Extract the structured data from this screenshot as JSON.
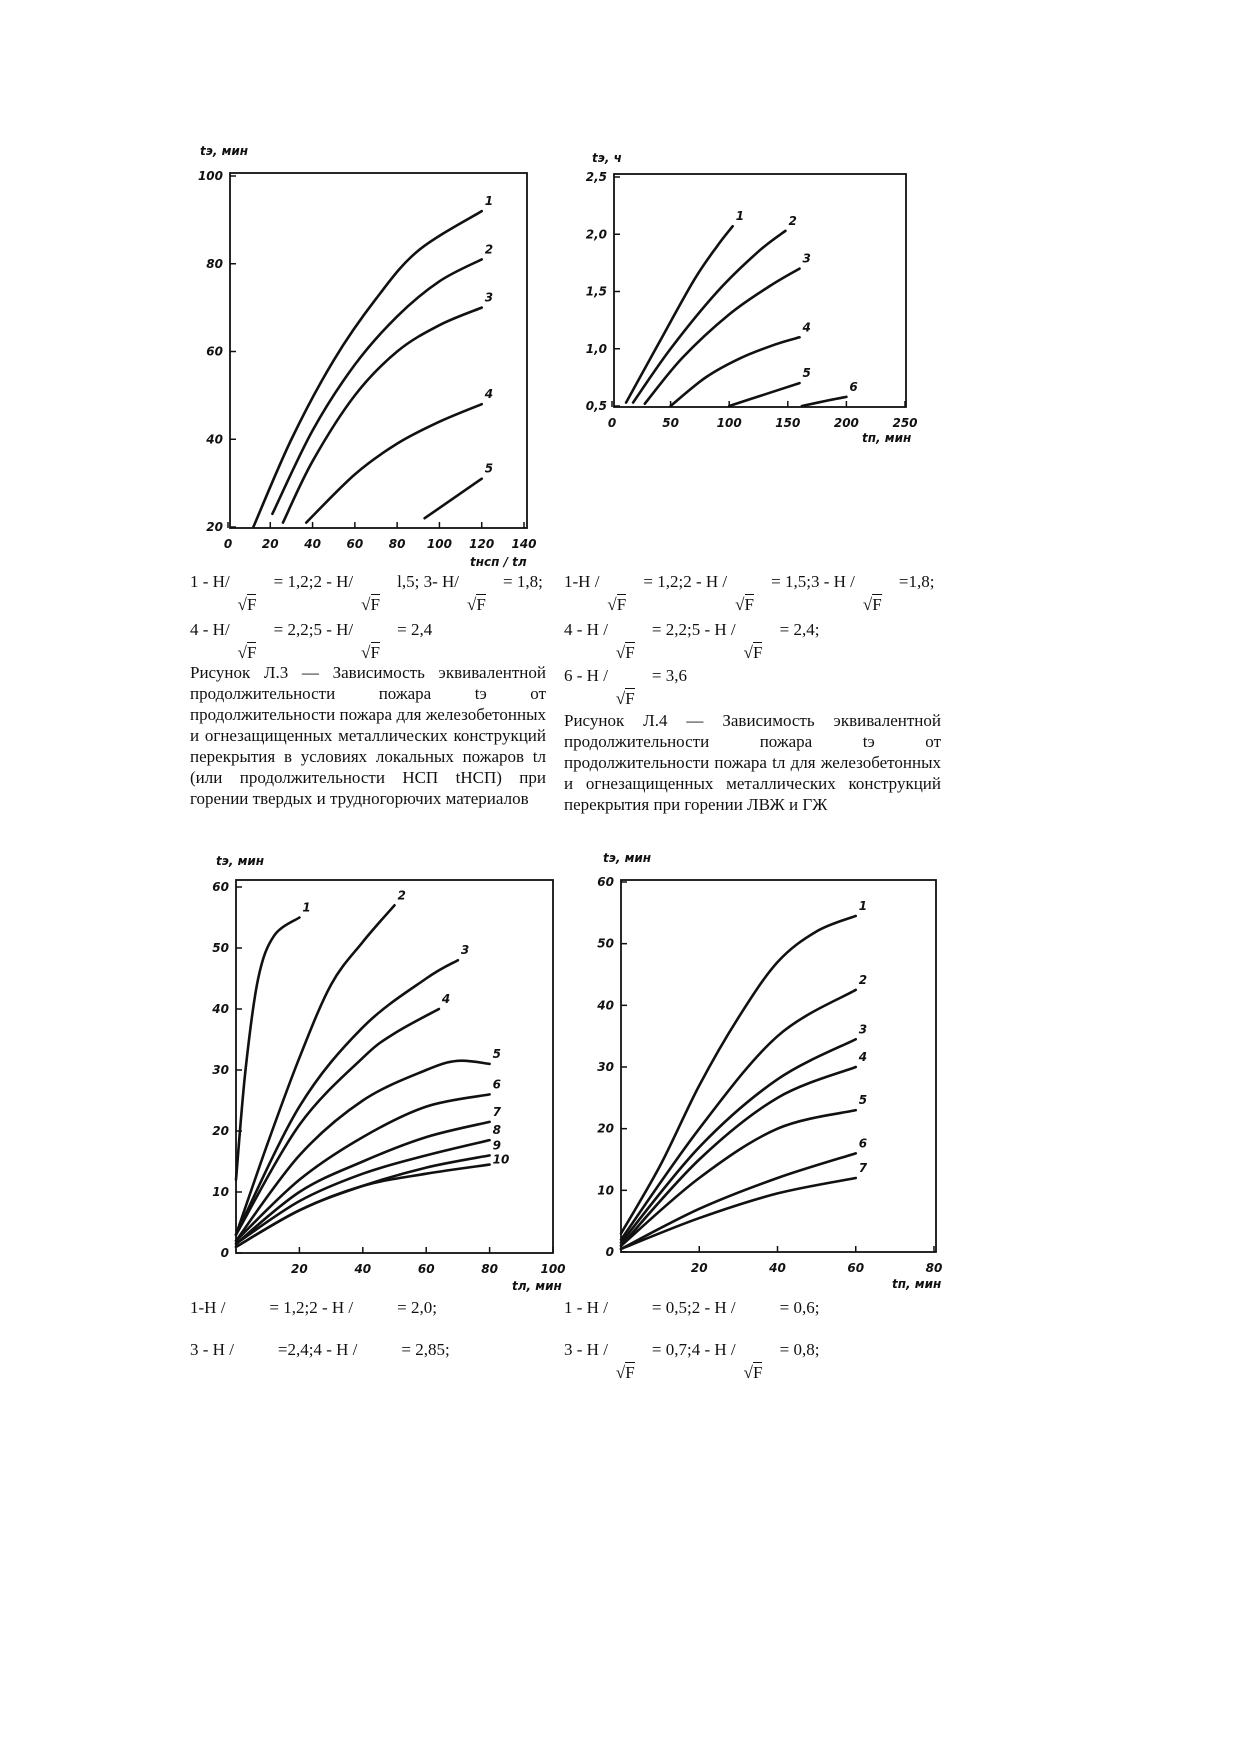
{
  "chart_data": [
    {
      "id": "fig-l3",
      "type": "line",
      "ylabel": "tэ, мин",
      "xlabel": "tнсп / tл",
      "xlim": [
        0,
        140
      ],
      "ylim": [
        20,
        100
      ],
      "xticks": [
        "0",
        "20",
        "40",
        "60",
        "80",
        "100",
        "120",
        "140"
      ],
      "xtick_values": [
        0,
        20,
        40,
        60,
        80,
        100,
        120,
        140
      ],
      "yticks": [
        "20",
        "40",
        "60",
        "80",
        "100"
      ],
      "ytick_values": [
        20,
        40,
        60,
        80,
        100
      ],
      "series": [
        {
          "name": "1",
          "points": [
            [
              12,
              20
            ],
            [
              30,
              40
            ],
            [
              50,
              58
            ],
            [
              70,
              72
            ],
            [
              90,
              83
            ],
            [
              120,
              92
            ]
          ]
        },
        {
          "name": "2",
          "points": [
            [
              21,
              23
            ],
            [
              40,
              42
            ],
            [
              60,
              57
            ],
            [
              80,
              68
            ],
            [
              100,
              76
            ],
            [
              120,
              81
            ]
          ]
        },
        {
          "name": "3",
          "points": [
            [
              26,
              21
            ],
            [
              40,
              35
            ],
            [
              60,
              50
            ],
            [
              80,
              60
            ],
            [
              100,
              66
            ],
            [
              120,
              70
            ]
          ]
        },
        {
          "name": "4",
          "points": [
            [
              37,
              21
            ],
            [
              60,
              32
            ],
            [
              80,
              39
            ],
            [
              100,
              44
            ],
            [
              120,
              48
            ]
          ]
        },
        {
          "name": "5",
          "points": [
            [
              93,
              22
            ],
            [
              120,
              31
            ]
          ]
        }
      ]
    },
    {
      "id": "fig-l4",
      "type": "line",
      "ylabel": "tэ, ч",
      "xlabel": "tп, мин",
      "xlim": [
        0,
        250
      ],
      "ylim": [
        0.5,
        2.5
      ],
      "xticks": [
        "0",
        "50",
        "100",
        "150",
        "200",
        "250"
      ],
      "xtick_values": [
        0,
        50,
        100,
        150,
        200,
        250
      ],
      "yticks": [
        "0,5",
        "1,0",
        "1,5",
        "2,0",
        "2,5"
      ],
      "ytick_values": [
        0.5,
        1.0,
        1.5,
        2.0,
        2.5
      ],
      "series": [
        {
          "name": "1",
          "points": [
            [
              12,
              0.53
            ],
            [
              40,
              1.05
            ],
            [
              70,
              1.6
            ],
            [
              90,
              1.9
            ],
            [
              103,
              2.07
            ]
          ]
        },
        {
          "name": "2",
          "points": [
            [
              18,
              0.53
            ],
            [
              50,
              1.0
            ],
            [
              90,
              1.5
            ],
            [
              125,
              1.85
            ],
            [
              148,
              2.03
            ]
          ]
        },
        {
          "name": "3",
          "points": [
            [
              28,
              0.52
            ],
            [
              60,
              0.92
            ],
            [
              100,
              1.3
            ],
            [
              135,
              1.55
            ],
            [
              160,
              1.7
            ]
          ]
        },
        {
          "name": "4",
          "points": [
            [
              50,
              0.5
            ],
            [
              80,
              0.75
            ],
            [
              110,
              0.92
            ],
            [
              140,
              1.04
            ],
            [
              160,
              1.1
            ]
          ]
        },
        {
          "name": "5",
          "points": [
            [
              100,
              0.5
            ],
            [
              130,
              0.6
            ],
            [
              160,
              0.7
            ]
          ]
        },
        {
          "name": "6",
          "points": [
            [
              162,
              0.5
            ],
            [
              185,
              0.55
            ],
            [
              200,
              0.58
            ]
          ]
        }
      ]
    },
    {
      "id": "fig-l5",
      "type": "line",
      "ylabel": "tэ, мин",
      "xlabel": "tл, мин",
      "xlim": [
        0,
        100
      ],
      "ylim": [
        0,
        60
      ],
      "xticks": [
        "20",
        "40",
        "60",
        "80",
        "100"
      ],
      "xtick_values": [
        20,
        40,
        60,
        80,
        100
      ],
      "yticks": [
        "0",
        "10",
        "20",
        "30",
        "40",
        "50",
        "60"
      ],
      "ytick_values": [
        0,
        10,
        20,
        30,
        40,
        50,
        60
      ],
      "series": [
        {
          "name": "1",
          "points": [
            [
              0,
              12
            ],
            [
              3,
              30
            ],
            [
              7,
              45
            ],
            [
              12,
              52
            ],
            [
              20,
              55
            ]
          ]
        },
        {
          "name": "2",
          "points": [
            [
              0,
              3
            ],
            [
              10,
              18
            ],
            [
              20,
              32
            ],
            [
              30,
              44
            ],
            [
              40,
              51
            ],
            [
              50,
              57
            ]
          ]
        },
        {
          "name": "3",
          "points": [
            [
              0,
              3
            ],
            [
              20,
              24
            ],
            [
              40,
              37
            ],
            [
              60,
              45
            ],
            [
              70,
              48
            ]
          ]
        },
        {
          "name": "4",
          "points": [
            [
              0,
              3
            ],
            [
              20,
              21
            ],
            [
              40,
              32
            ],
            [
              50,
              36
            ],
            [
              64,
              40
            ]
          ]
        },
        {
          "name": "5",
          "points": [
            [
              0,
              2
            ],
            [
              20,
              16
            ],
            [
              40,
              25
            ],
            [
              60,
              30
            ],
            [
              70,
              31.5
            ],
            [
              80,
              31
            ]
          ]
        },
        {
          "name": "6",
          "points": [
            [
              0,
              2
            ],
            [
              20,
              12
            ],
            [
              40,
              19
            ],
            [
              60,
              24
            ],
            [
              80,
              26
            ]
          ]
        },
        {
          "name": "7",
          "points": [
            [
              0,
              1.5
            ],
            [
              20,
              10
            ],
            [
              40,
              15
            ],
            [
              60,
              19
            ],
            [
              80,
              21.5
            ]
          ]
        },
        {
          "name": "8",
          "points": [
            [
              0,
              1.5
            ],
            [
              20,
              8.5
            ],
            [
              40,
              13
            ],
            [
              60,
              16
            ],
            [
              80,
              18.5
            ]
          ]
        },
        {
          "name": "9",
          "points": [
            [
              0,
              1
            ],
            [
              20,
              7
            ],
            [
              40,
              11
            ],
            [
              60,
              14
            ],
            [
              80,
              16
            ]
          ]
        },
        {
          "name": "10",
          "points": [
            [
              0,
              1
            ],
            [
              20,
              7
            ],
            [
              40,
              11
            ],
            [
              60,
              13
            ],
            [
              80,
              14.5
            ]
          ]
        }
      ]
    },
    {
      "id": "fig-l6",
      "type": "line",
      "ylabel": "tэ, мин",
      "xlabel": "tп, мин",
      "xlim": [
        0,
        80
      ],
      "ylim": [
        0,
        60
      ],
      "xticks": [
        "20",
        "40",
        "60",
        "80"
      ],
      "xtick_values": [
        20,
        40,
        60,
        80
      ],
      "yticks": [
        "0",
        "10",
        "20",
        "30",
        "40",
        "50",
        "60"
      ],
      "ytick_values": [
        0,
        10,
        20,
        30,
        40,
        50,
        60
      ],
      "series": [
        {
          "name": "1",
          "points": [
            [
              0,
              3
            ],
            [
              10,
              14
            ],
            [
              20,
              27
            ],
            [
              30,
              38
            ],
            [
              40,
              47
            ],
            [
              50,
              52
            ],
            [
              60,
              54.5
            ]
          ]
        },
        {
          "name": "2",
          "points": [
            [
              0,
              2
            ],
            [
              20,
              20
            ],
            [
              40,
              35
            ],
            [
              60,
              42.5
            ]
          ]
        },
        {
          "name": "3",
          "points": [
            [
              0,
              1.5
            ],
            [
              20,
              17
            ],
            [
              40,
              28
            ],
            [
              60,
              34.5
            ]
          ]
        },
        {
          "name": "4",
          "points": [
            [
              0,
              1
            ],
            [
              20,
              15
            ],
            [
              40,
              25
            ],
            [
              60,
              30
            ]
          ]
        },
        {
          "name": "5",
          "points": [
            [
              0,
              1
            ],
            [
              20,
              12
            ],
            [
              40,
              20
            ],
            [
              60,
              23
            ]
          ]
        },
        {
          "name": "6",
          "points": [
            [
              0,
              0.5
            ],
            [
              20,
              7
            ],
            [
              40,
              12
            ],
            [
              60,
              16
            ]
          ]
        },
        {
          "name": "7",
          "points": [
            [
              0,
              0.5
            ],
            [
              20,
              5.5
            ],
            [
              40,
              9.5
            ],
            [
              60,
              12
            ]
          ]
        }
      ]
    }
  ],
  "legends": {
    "fig_l3": [
      [
        {
          "pre": "1 - H/",
          "post": "= 1,2;",
          "sqrt": "F"
        },
        {
          "pre": " 2 - H/",
          "post": "l,5; 3 ",
          "sqrt": "F"
        },
        {
          "pre": " - H/",
          "post": "= 1,8;",
          "sqrt": "F"
        }
      ],
      [
        {
          "pre": "4 - H/",
          "post": "= 2,2;",
          "sqrt": "F"
        },
        {
          "pre": " 5 - H/",
          "post": "= 2,4",
          "sqrt": "F"
        }
      ]
    ],
    "fig_l4": [
      [
        {
          "pre": "1-H /",
          "post": "= 1,2;",
          "sqrt": "F"
        },
        {
          "pre": " 2 - H /",
          "post": "= 1,5;",
          "sqrt": "F"
        },
        {
          "pre": " 3 - H /",
          "post": "=1,8;",
          "sqrt": "F"
        }
      ],
      [
        {
          "pre": "4 - H /",
          "post": "= 2,2;",
          "sqrt": "F"
        },
        {
          "pre": " 5 - H /",
          "post": "= 2,4;",
          "sqrt": "F"
        }
      ],
      [
        {
          "pre": "6 - H /",
          "post": "= 3,6",
          "sqrt": "F"
        }
      ]
    ],
    "fig_l5": [
      [
        {
          "pre": "1-H /",
          "post": "= 1,2;"
        },
        {
          "pre": " 2 - H /",
          "post": "= 2,0;"
        }
      ],
      [
        {
          "pre": "3 - H /",
          "post": "=2,4;"
        },
        {
          "pre": " 4 - H /",
          "post": "= 2,85;"
        }
      ]
    ],
    "fig_l6": [
      [
        {
          "pre": "1 - H /",
          "post": "= 0,5;"
        },
        {
          "pre": " 2 - H /",
          "post": "= 0,6;"
        }
      ],
      [
        {
          "pre": "3 - H /",
          "post": "= 0,7;",
          "sqrt": "F"
        },
        {
          "pre": " 4 - H /",
          "post": "= 0,8;",
          "sqrt": "F"
        }
      ]
    ]
  },
  "captions": {
    "fig_l3": "Рисунок Л.3 — Зависимость эквивалентной продолжительности пожара tэ от продолжительности пожара для железобетонных и огнезащищенных металлических конструкций перекрытия в условиях локальных пожаров tл (или продолжительности НСП tНСП) при горении твердых и трудногорючих материалов",
    "fig_l4": "Рисунок Л.4 — Зависимость эквивалентной продолжительности пожара tэ от продолжительности пожара tл для железобетонных и огнезащищенных металлических конструкций перекрытия при горении ЛВЖ и ГЖ"
  }
}
